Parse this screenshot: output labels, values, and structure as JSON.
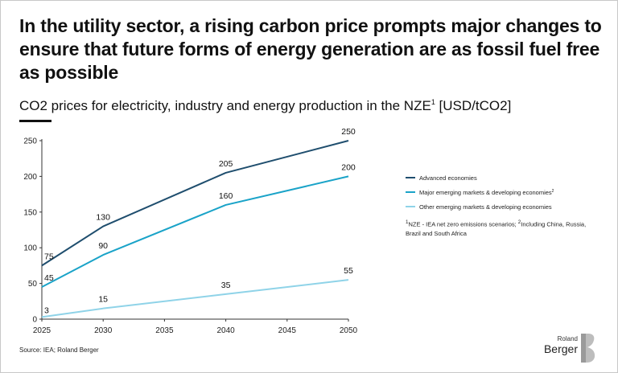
{
  "header": {
    "title": "In the utility sector, a rising carbon price prompts major changes to ensure that future forms of energy generation are as fossil fuel free as possible",
    "subtitle_main": "CO2 prices for electricity, industry and energy production in the NZE",
    "subtitle_sup": "1",
    "subtitle_unit": " [USD/tCO2]"
  },
  "chart_data": {
    "type": "line",
    "title": "CO2 prices for electricity, industry and energy production in the NZE [USD/tCO2]",
    "xlabel": "",
    "ylabel": "USD/tCO2",
    "xlim": [
      2025,
      2050
    ],
    "ylim": [
      0,
      250
    ],
    "x_ticks": [
      "2025",
      "2030",
      "2035",
      "2040",
      "2045",
      "2050"
    ],
    "y_ticks": [
      "0",
      "50",
      "100",
      "150",
      "200",
      "250"
    ],
    "grid": false,
    "legend_position": "right",
    "series": [
      {
        "name": "Advanced economies",
        "color": "#1f4e6e",
        "x": [
          2025,
          2030,
          2040,
          2050
        ],
        "values": [
          75,
          130,
          205,
          250
        ],
        "labels": [
          "75",
          "130",
          "205",
          "250"
        ]
      },
      {
        "name": "Major emerging markets & developing economies",
        "legend_sup": "2",
        "color": "#1aa3c8",
        "x": [
          2025,
          2030,
          2040,
          2050
        ],
        "values": [
          45,
          90,
          160,
          200
        ],
        "labels": [
          "45",
          "90",
          "160",
          "200"
        ]
      },
      {
        "name": "Other emerging markets & developing economies",
        "color": "#8fd3e8",
        "x": [
          2025,
          2030,
          2040,
          2050
        ],
        "values": [
          3,
          15,
          35,
          55
        ],
        "labels": [
          "3",
          "15",
          "35",
          "55"
        ]
      }
    ]
  },
  "footnote": {
    "sup1": "1",
    "text1": "NZE - IEA net zero emissions scenarios; ",
    "sup2": "2",
    "text2": "Including China, Russia, Brazil and South Africa"
  },
  "source": "Source: IEA; Roland Berger",
  "logo": {
    "line1": "Roland",
    "line2": "Berger"
  }
}
